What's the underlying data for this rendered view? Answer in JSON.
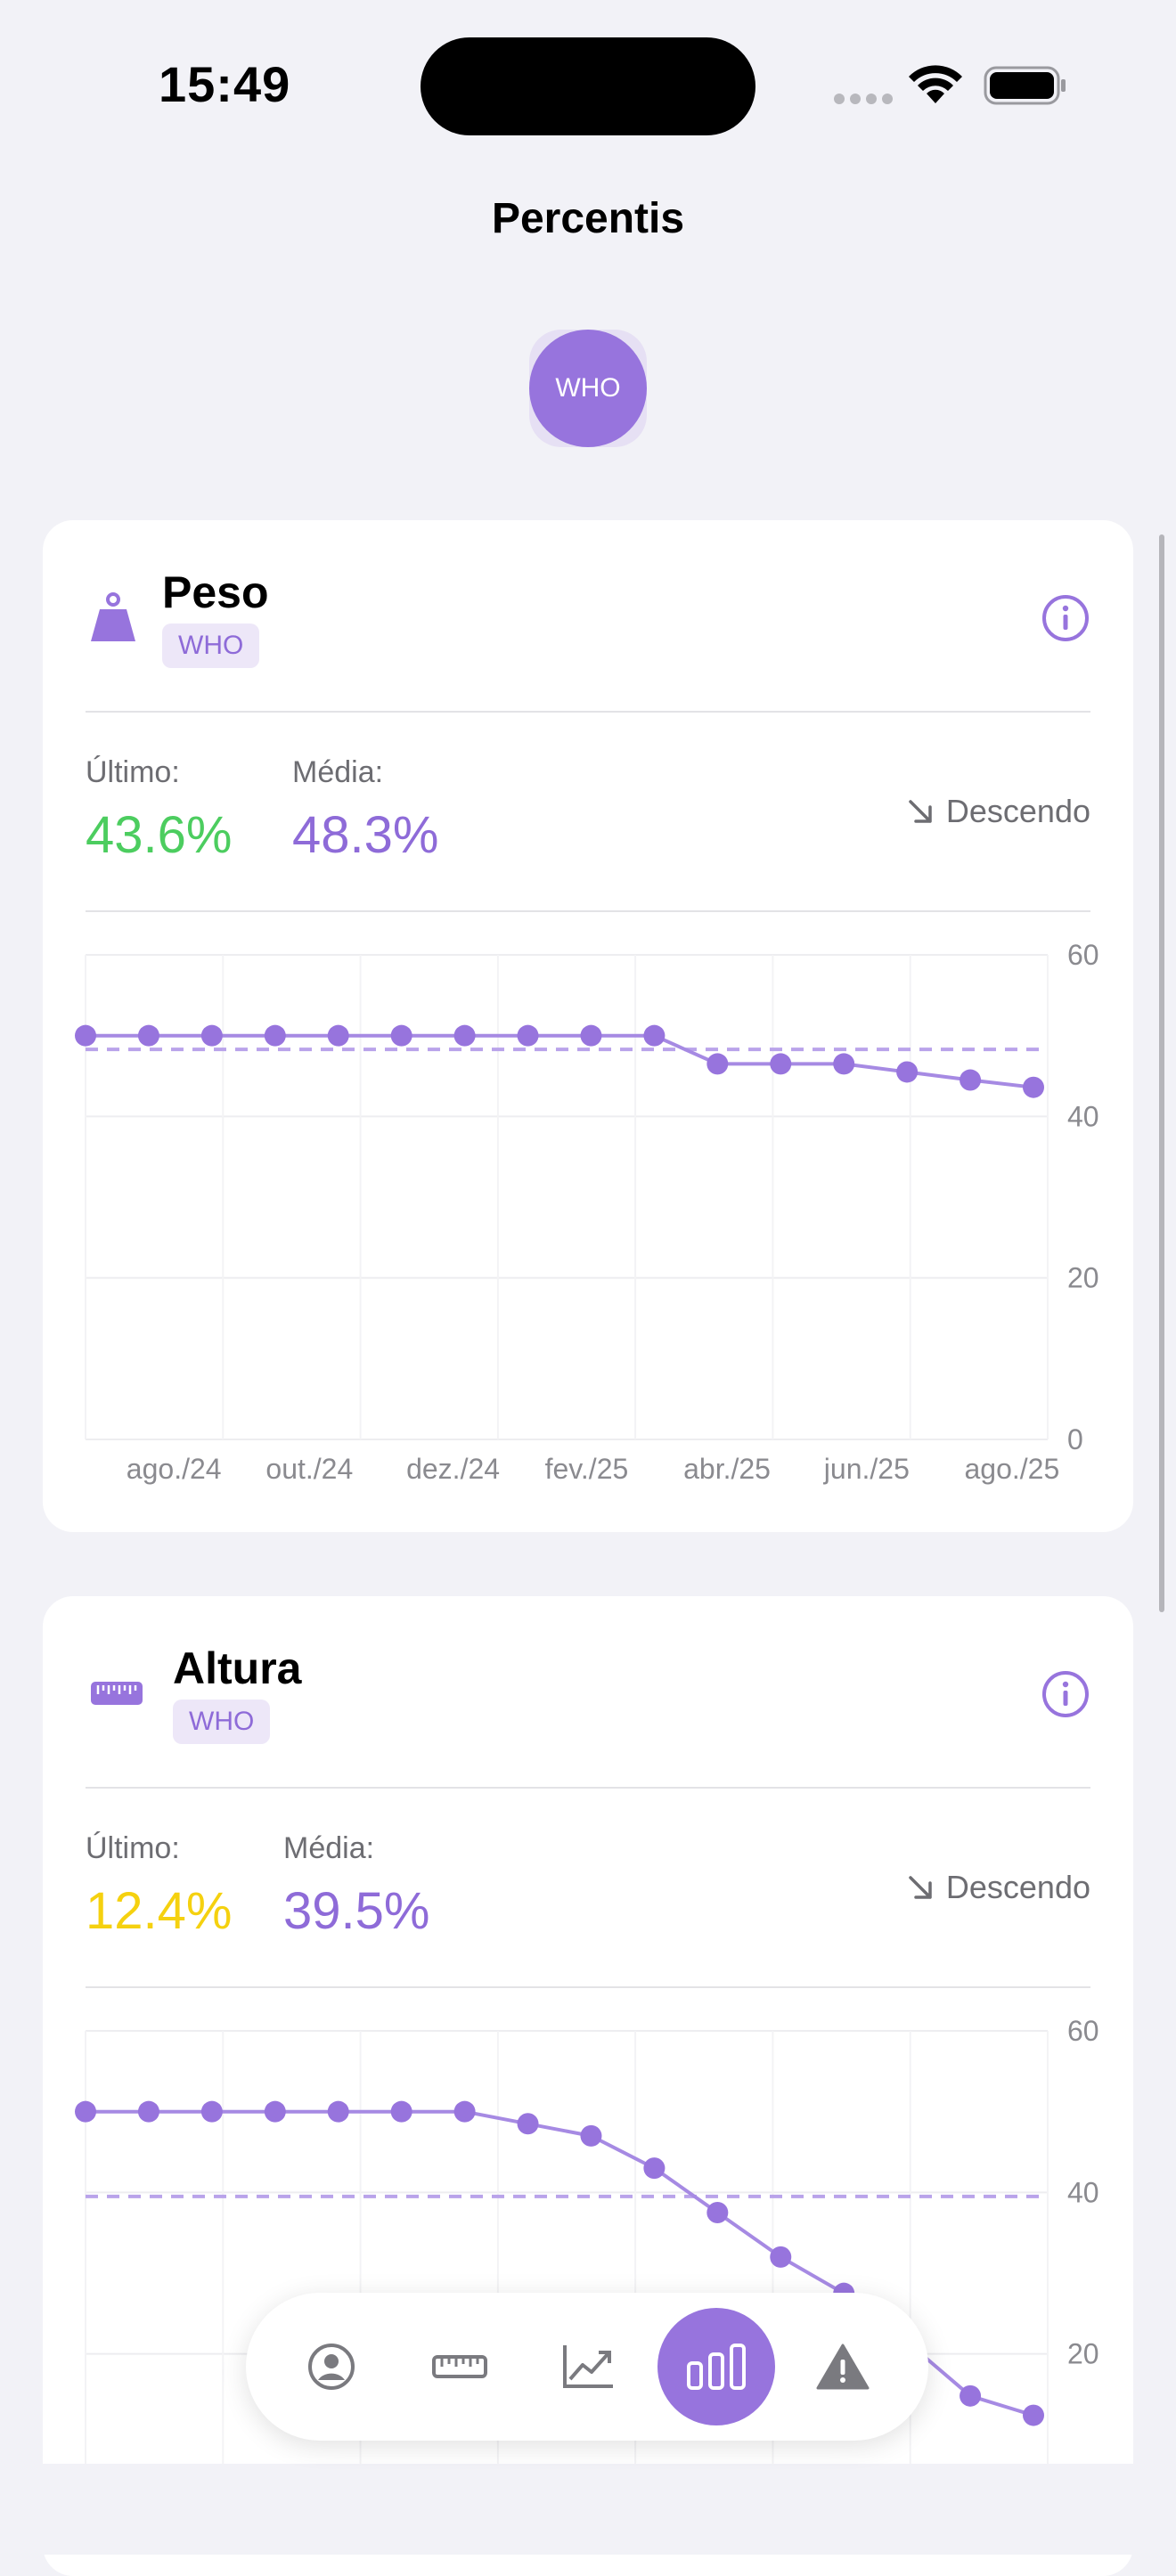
{
  "status_bar": {
    "time": "15:49"
  },
  "header": {
    "title": "Percentis"
  },
  "standard_toggle": {
    "label": "WHO"
  },
  "cards": [
    {
      "title": "Peso",
      "badge": "WHO",
      "icon": "weight-icon",
      "last_label": "Último:",
      "last_value": "43.6%",
      "avg_label": "Média:",
      "avg_value": "48.3%",
      "trend": "Descendo",
      "colors": {
        "last": "#4ccd5f",
        "avg": "#8e6bd8"
      }
    },
    {
      "title": "Altura",
      "badge": "WHO",
      "icon": "ruler-icon",
      "last_label": "Último:",
      "last_value": "12.4%",
      "avg_label": "Média:",
      "avg_value": "39.5%",
      "trend": "Descendo",
      "colors": {
        "last": "#f5d10f",
        "avg": "#8e6bd8"
      }
    }
  ],
  "chart_data": [
    {
      "type": "line",
      "x": [
        "2024-07",
        "2024-08",
        "2024-09",
        "2024-10",
        "2024-11",
        "2024-12",
        "2025-01",
        "2025-02",
        "2025-03",
        "2025-04",
        "2025-05",
        "2025-06",
        "2025-07",
        "2025-08",
        "2025-09",
        "2025-10"
      ],
      "x_tick_labels": [
        "ago./24",
        "out./24",
        "dez./24",
        "fev./25",
        "abr./25",
        "jun./25",
        "ago./25"
      ],
      "y_ticks": [
        "60",
        "40",
        "20",
        "0"
      ],
      "ylim": [
        0,
        60
      ],
      "series": [
        {
          "values": [
            50,
            50,
            50,
            50,
            50,
            50,
            50,
            50,
            50,
            50,
            46.5,
            46.5,
            46.5,
            45.5,
            44.5,
            43.6
          ]
        }
      ],
      "reference_line": 48.3,
      "grid": true,
      "color": "#9774dd"
    },
    {
      "type": "line",
      "x": [
        "2024-07",
        "2024-08",
        "2024-09",
        "2024-10",
        "2024-11",
        "2024-12",
        "2025-01",
        "2025-02",
        "2025-03",
        "2025-04",
        "2025-05",
        "2025-06",
        "2025-07",
        "2025-08",
        "2025-09",
        "2025-10"
      ],
      "y_ticks": [
        "60",
        "40",
        "20"
      ],
      "ylim": [
        0,
        60
      ],
      "series": [
        {
          "values": [
            50,
            50,
            50,
            50,
            50,
            50,
            50,
            48.5,
            47,
            43,
            37.5,
            32,
            27.5,
            21.5,
            14.8,
            12.4
          ]
        }
      ],
      "reference_line": 39.5,
      "grid": true,
      "color": "#9774dd"
    }
  ],
  "tab_bar": {
    "items": [
      {
        "icon": "profile-icon"
      },
      {
        "icon": "ruler-icon"
      },
      {
        "icon": "growth-chart-icon"
      },
      {
        "icon": "percentile-bars-icon",
        "active": true
      },
      {
        "icon": "warning-icon"
      }
    ]
  }
}
